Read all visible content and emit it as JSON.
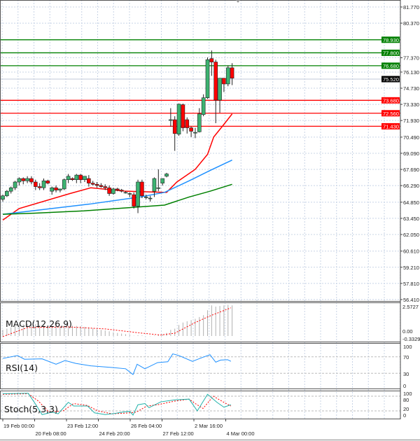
{
  "chart_data": [
    {
      "type": "candlestick",
      "panel": "price",
      "ylim": [
        56.41,
        81.77
      ],
      "y_ticks": [
        "81.770",
        "80.370",
        "77.370",
        "76.130",
        "74.730",
        "73.330",
        "71.930",
        "70.490",
        "69.090",
        "67.690",
        "66.290",
        "64.850",
        "63.450",
        "62.050",
        "60.610",
        "59.210",
        "57.810",
        "56.410"
      ],
      "x_ticks": [
        "19 Feb 00:00",
        "20 Feb 08:00",
        "23 Feb 12:00",
        "24 Feb 20:00",
        "26 Feb 04:00",
        "27 Feb 12:00",
        "2 Mar 16:00",
        "4 Mar 00:00"
      ],
      "grid": true,
      "candles": [
        [
          65.1,
          65.5,
          64.9,
          65.4
        ],
        [
          65.4,
          65.9,
          65.3,
          65.8
        ],
        [
          65.8,
          66.2,
          65.6,
          66.1
        ],
        [
          66.1,
          66.7,
          65.9,
          66.6
        ],
        [
          66.6,
          67.0,
          66.3,
          66.9
        ],
        [
          66.9,
          67.0,
          66.4,
          66.7
        ],
        [
          66.7,
          67.1,
          66.5,
          66.9
        ],
        [
          66.9,
          67.1,
          66.4,
          66.6
        ],
        [
          66.6,
          66.8,
          65.9,
          66.2
        ],
        [
          66.2,
          66.5,
          65.9,
          66.1
        ],
        [
          66.1,
          66.9,
          65.9,
          66.7
        ],
        [
          66.7,
          66.8,
          66.4,
          66.5
        ],
        [
          65.8,
          66.2,
          65.5,
          66.1
        ],
        [
          66.1,
          66.3,
          65.7,
          65.9
        ],
        [
          65.9,
          66.0,
          65.7,
          66.0
        ],
        [
          66.0,
          66.9,
          65.9,
          66.8
        ],
        [
          66.8,
          67.3,
          66.5,
          67.1
        ],
        [
          66.9,
          67.0,
          66.7,
          66.8
        ],
        [
          66.8,
          67.3,
          66.5,
          67.2
        ],
        [
          67.2,
          67.3,
          66.5,
          66.8
        ],
        [
          66.8,
          67.0,
          66.6,
          67.1
        ],
        [
          66.9,
          67.2,
          66.2,
          66.5
        ],
        [
          66.5,
          66.7,
          66.3,
          66.4
        ],
        [
          66.4,
          66.6,
          66.1,
          66.3
        ],
        [
          66.3,
          66.5,
          66.1,
          66.2
        ],
        [
          66.2,
          66.4,
          65.9,
          66.1
        ],
        [
          66.1,
          66.3,
          65.4,
          65.6
        ],
        [
          65.6,
          66.1,
          65.5,
          66.0
        ],
        [
          66.0,
          66.1,
          65.8,
          65.9
        ],
        [
          65.9,
          66.0,
          65.7,
          65.8
        ],
        [
          65.7,
          65.8,
          65.6,
          65.7
        ],
        [
          65.6,
          65.7,
          65.3,
          65.6
        ],
        [
          65.5,
          65.7,
          64.3,
          64.5
        ],
        [
          64.5,
          66.8,
          63.9,
          66.6
        ],
        [
          66.6,
          66.8,
          65.2,
          65.4
        ],
        [
          65.3,
          65.5,
          65.1,
          65.3
        ],
        [
          65.2,
          65.4,
          64.9,
          65.2
        ],
        [
          65.8,
          67.0,
          65.3,
          66.9
        ],
        [
          66.1,
          67.7,
          65.8,
          66.1
        ],
        [
          66.5,
          66.9,
          66.3,
          66.9
        ],
        [
          67.1,
          67.4,
          67.0,
          67.3
        ],
        [
          72.0,
          73.0,
          71.4,
          72.0
        ],
        [
          72.0,
          72.3,
          69.3,
          70.8
        ],
        [
          70.75,
          73.4,
          70.6,
          73.35
        ],
        [
          73.3,
          73.4,
          71.0,
          71.3
        ],
        [
          72.0,
          72.2,
          70.8,
          71.3
        ],
        [
          71.3,
          71.4,
          70.5,
          71.0
        ],
        [
          70.9,
          71.3,
          70.4,
          70.9
        ],
        [
          70.95,
          73.0,
          70.9,
          72.5
        ],
        [
          72.45,
          74.2,
          72.3,
          73.9
        ],
        [
          73.9,
          77.4,
          73.8,
          77.2
        ],
        [
          77.3,
          78.0,
          75.8,
          77.0
        ],
        [
          77.0,
          77.2,
          71.7,
          73.7
        ],
        [
          73.7,
          75.6,
          72.6,
          75.6
        ],
        [
          75.6,
          75.6,
          74.4,
          75.1
        ],
        [
          75.1,
          76.7,
          74.9,
          76.5
        ],
        [
          76.5,
          76.9,
          75.0,
          75.6
        ]
      ],
      "moving_averages": [
        {
          "color": "#ff0000",
          "points": [
            [
              0,
              63.3
            ],
            [
              4,
              64.3
            ],
            [
              16.4,
              65.6
            ],
            [
              21.5,
              66.1
            ],
            [
              30,
              65.8
            ],
            [
              40,
              65.7
            ],
            [
              42.5,
              66.6
            ],
            [
              47,
              67.7
            ],
            [
              50,
              69.0
            ],
            [
              51.5,
              70.5
            ],
            [
              54,
              71.6
            ],
            [
              56,
              72.5
            ]
          ]
        },
        {
          "color": "#1e90ff",
          "points": [
            [
              0,
              63.8
            ],
            [
              9.6,
              64.2
            ],
            [
              21.5,
              64.7
            ],
            [
              33.5,
              65.3
            ],
            [
              39.5,
              65.7
            ],
            [
              45.5,
              66.7
            ],
            [
              50.6,
              67.6
            ],
            [
              56,
              68.5
            ]
          ]
        },
        {
          "color": "#008000",
          "points": [
            [
              0,
              63.8
            ],
            [
              7.9,
              63.9
            ],
            [
              19.8,
              64.1
            ],
            [
              31.8,
              64.4
            ],
            [
              39.5,
              64.6
            ],
            [
              45.5,
              65.3
            ],
            [
              50.6,
              65.8
            ],
            [
              56,
              66.4
            ]
          ]
        }
      ],
      "levels": [
        {
          "value": "78.930",
          "color": "#008000"
        },
        {
          "value": "77.800",
          "color": "#008000"
        },
        {
          "value": "76.680",
          "color": "#008000"
        },
        {
          "value": "73.680",
          "color": "#ff0000"
        },
        {
          "value": "72.560",
          "color": "#ff0000"
        },
        {
          "value": "71.430",
          "color": "#ff0000"
        }
      ],
      "current_price": {
        "value": "75.520",
        "color": "#000000"
      }
    },
    {
      "type": "bar",
      "panel": "macd",
      "label": "MACD(12,26,9)",
      "y_ticks": [
        "2.5727",
        "0.00",
        "-0.3329"
      ],
      "ylim": [
        -0.3329,
        2.5727
      ],
      "histogram": [
        0.5,
        0.6,
        0.7,
        0.8,
        0.9,
        0.95,
        0.98,
        1.0,
        0.97,
        0.92,
        0.9,
        0.88,
        0.85,
        0.8,
        0.78,
        0.8,
        0.85,
        0.85,
        0.82,
        0.8,
        0.75,
        0.7,
        0.62,
        0.55,
        0.5,
        0.45,
        0.38,
        0.3,
        0.25,
        0.2,
        0.15,
        0.1,
        0.02,
        0.05,
        0.04,
        0.0,
        -0.02,
        0.03,
        0.08,
        0.15,
        0.25,
        0.5,
        0.6,
        0.9,
        1.1,
        1.2,
        1.3,
        1.4,
        1.55,
        1.7,
        2.1,
        2.5,
        2.4,
        2.45,
        2.5,
        2.55,
        2.5
      ],
      "signal": [
        [
          0,
          -0.05
        ],
        [
          6,
          0.69
        ],
        [
          16,
          0.74
        ],
        [
          25,
          0.58
        ],
        [
          33.5,
          0.25
        ],
        [
          38.6,
          0.08
        ],
        [
          42,
          0.23
        ],
        [
          47,
          1.1
        ],
        [
          50.6,
          1.64
        ],
        [
          55.7,
          2.3
        ]
      ],
      "hist_color": "#b0b0b0",
      "signal_color": "#ff0000"
    },
    {
      "type": "line",
      "panel": "rsi",
      "label": "RSI(14)",
      "y_ticks": [
        "100",
        "70",
        "30",
        "0"
      ],
      "ylim": [
        0,
        100
      ],
      "color": "#1e90ff",
      "points": [
        [
          0,
          66
        ],
        [
          3.6,
          73
        ],
        [
          5.3,
          64
        ],
        [
          9.6,
          65
        ],
        [
          13,
          52
        ],
        [
          15.2,
          61
        ],
        [
          17.8,
          54
        ],
        [
          21.5,
          48
        ],
        [
          26.7,
          44
        ],
        [
          30,
          41
        ],
        [
          31.8,
          27
        ],
        [
          32.8,
          52
        ],
        [
          34.7,
          41
        ],
        [
          37.8,
          56
        ],
        [
          40.3,
          58
        ],
        [
          41.5,
          77
        ],
        [
          43,
          73
        ],
        [
          46.3,
          59
        ],
        [
          48.9,
          69
        ],
        [
          50.6,
          75
        ],
        [
          52,
          57
        ],
        [
          53.2,
          62
        ],
        [
          54.9,
          63
        ],
        [
          55.7,
          59
        ]
      ]
    },
    {
      "type": "line",
      "panel": "stoch",
      "label": "Stoch(5,3,3)",
      "y_ticks": [
        "100",
        "80",
        "20",
        "0"
      ],
      "ylim": [
        0,
        100
      ],
      "main_color": "#20b2aa",
      "signal_color": "#ff0000",
      "main": [
        [
          0,
          90
        ],
        [
          6.2,
          92
        ],
        [
          7.9,
          50
        ],
        [
          9.6,
          5
        ],
        [
          12.1,
          15
        ],
        [
          13.5,
          8
        ],
        [
          16,
          55
        ],
        [
          17.3,
          40
        ],
        [
          20.7,
          40
        ],
        [
          22.4,
          12
        ],
        [
          25,
          5
        ],
        [
          27.5,
          10
        ],
        [
          29.2,
          15
        ],
        [
          31,
          18
        ],
        [
          31.8,
          3
        ],
        [
          33,
          45
        ],
        [
          34.7,
          50
        ],
        [
          35.7,
          33
        ],
        [
          38.6,
          57
        ],
        [
          42,
          65
        ],
        [
          45.5,
          68
        ],
        [
          47.5,
          20
        ],
        [
          50,
          88
        ],
        [
          52.3,
          55
        ],
        [
          54,
          35
        ],
        [
          55.7,
          45
        ]
      ],
      "signal": [
        [
          0,
          88
        ],
        [
          6.2,
          90
        ],
        [
          8.7,
          60
        ],
        [
          11.3,
          15
        ],
        [
          14.7,
          20
        ],
        [
          17.3,
          50
        ],
        [
          20.7,
          42
        ],
        [
          23.2,
          20
        ],
        [
          26.7,
          8
        ],
        [
          31,
          12
        ],
        [
          32.6,
          15
        ],
        [
          35.2,
          40
        ],
        [
          37.8,
          45
        ],
        [
          42,
          60
        ],
        [
          45.5,
          68
        ],
        [
          47,
          50
        ],
        [
          48.9,
          30
        ],
        [
          51.4,
          80
        ],
        [
          54,
          55
        ],
        [
          55.7,
          40
        ]
      ]
    }
  ]
}
